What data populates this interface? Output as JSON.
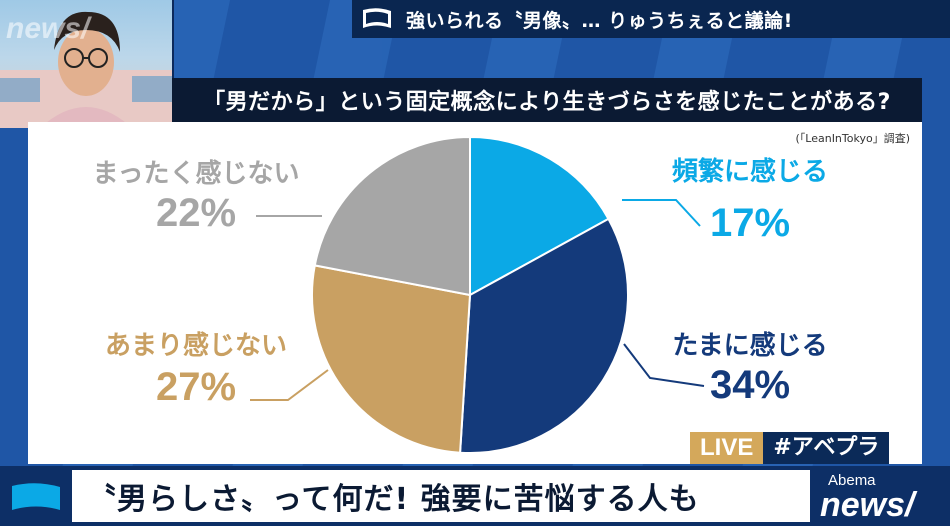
{
  "topic": {
    "text": "強いられる〝男像〟… りゅうちぇると議論!"
  },
  "question": {
    "text": "「男だから」という固定概念により生きづらさを感じたことがある?"
  },
  "source": {
    "text": "(「LeanInTokyo」調査)"
  },
  "badge": {
    "live": "LIVE",
    "hashtag": "#アベプラ"
  },
  "headline": {
    "text": "〝男らしさ〟って何だ! 強要に苦悩する人も"
  },
  "logo": {
    "small": "Abema",
    "big": "news/"
  },
  "watermark": {
    "text": "news/"
  },
  "colors": {
    "frequent": "#0ba9e6",
    "sometimes": "#143a7b",
    "rarely": "#c9a062",
    "never": "#a6a6a6"
  },
  "chart_data": {
    "type": "pie",
    "title": "「男だから」という固定概念により生きづらさを感じたことがある?",
    "slices": [
      {
        "label": "頻繁に感じる",
        "value": 17,
        "value_label": "17%",
        "color": "#0ba9e6"
      },
      {
        "label": "たまに感じる",
        "value": 34,
        "value_label": "34%",
        "color": "#143a7b"
      },
      {
        "label": "あまり感じない",
        "value": 27,
        "value_label": "27%",
        "color": "#c9a062"
      },
      {
        "label": "まったく感じない",
        "value": 22,
        "value_label": "22%",
        "color": "#a6a6a6"
      }
    ]
  }
}
